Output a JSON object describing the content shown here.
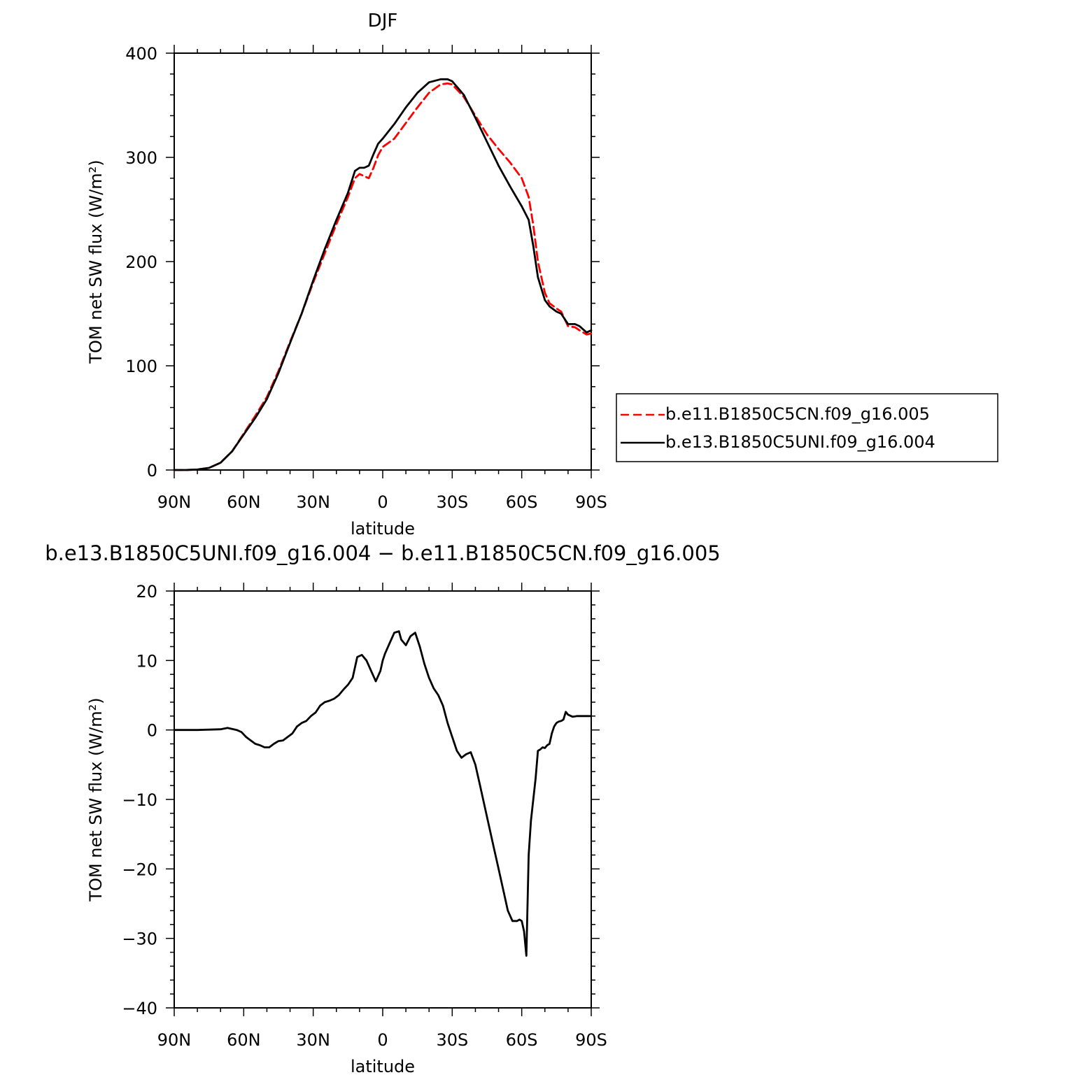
{
  "chart_data": [
    {
      "type": "line",
      "title": "DJF",
      "xlabel": "latitude",
      "ylabel": "TOM net SW flux (W/m²)",
      "xlim": [
        90,
        -90
      ],
      "ylim": [
        0,
        400
      ],
      "x_ticks": [
        90,
        60,
        30,
        0,
        -30,
        -60,
        -90
      ],
      "x_tick_labels": [
        "90N",
        "60N",
        "30N",
        "0",
        "30S",
        "60S",
        "90S"
      ],
      "y_ticks": [
        0,
        100,
        200,
        300,
        400
      ],
      "y_tick_labels": [
        "0",
        "100",
        "200",
        "300",
        "400"
      ],
      "legend_position": "right",
      "x": [
        90,
        85,
        80,
        75,
        70,
        65,
        60,
        55,
        50,
        45,
        40,
        35,
        30,
        25,
        20,
        15,
        12,
        10,
        8,
        6,
        4,
        2,
        0,
        -5,
        -10,
        -15,
        -20,
        -25,
        -28,
        -30,
        -35,
        -40,
        -45,
        -50,
        -55,
        -60,
        -63,
        -65,
        -67,
        -70,
        -72,
        -75,
        -77,
        -80,
        -83,
        -85,
        -88,
        -90
      ],
      "series": [
        {
          "name": "b.e11.B1850C5CN.f09_g16.005",
          "color": "#ff0000",
          "dash": "dashed",
          "values": [
            0,
            0,
            0.5,
            2,
            7,
            18,
            35,
            52,
            70,
            95,
            123,
            150,
            180,
            208,
            236,
            262,
            280,
            284,
            282,
            280,
            290,
            302,
            310,
            318,
            333,
            348,
            362,
            370,
            371,
            370,
            358,
            340,
            322,
            308,
            295,
            280,
            262,
            235,
            200,
            170,
            160,
            155,
            152,
            138,
            137,
            134,
            130,
            131
          ]
        },
        {
          "name": "b.e13.B1850C5UNI.f09_g16.004",
          "color": "#000000",
          "dash": "solid",
          "values": [
            0,
            0,
            0.5,
            2,
            7,
            18,
            34,
            50,
            68,
            93,
            122,
            150,
            182,
            212,
            240,
            266,
            287,
            290,
            290,
            292,
            303,
            313,
            318,
            332,
            348,
            362,
            372,
            375,
            375,
            373,
            360,
            338,
            315,
            292,
            272,
            253,
            240,
            215,
            185,
            163,
            157,
            152,
            150,
            140,
            140,
            138,
            132,
            134
          ]
        }
      ]
    },
    {
      "type": "line",
      "title": "b.e13.B1850C5UNI.f09_g16.004 − b.e11.B1850C5CN.f09_g16.005",
      "xlabel": "latitude",
      "ylabel": "TOM net SW flux (W/m²)",
      "xlim": [
        90,
        -90
      ],
      "ylim": [
        -40,
        20
      ],
      "x_ticks": [
        90,
        60,
        30,
        0,
        -30,
        -60,
        -90
      ],
      "x_tick_labels": [
        "90N",
        "60N",
        "30N",
        "0",
        "30S",
        "60S",
        "90S"
      ],
      "y_ticks": [
        -40,
        -30,
        -20,
        -10,
        0,
        10,
        20
      ],
      "y_tick_labels": [
        "−40",
        "−30",
        "−20",
        "−10",
        "0",
        "10",
        "20"
      ],
      "x": [
        90,
        80,
        70,
        67,
        63,
        61,
        59,
        57,
        55,
        53,
        51,
        49,
        47,
        45,
        43,
        41,
        39,
        37,
        35,
        33,
        31,
        29,
        27,
        25,
        23,
        21,
        19,
        17,
        15,
        13,
        11,
        9,
        7,
        5,
        3,
        1,
        0,
        -1,
        -3,
        -5,
        -7,
        -8,
        -10,
        -12,
        -14,
        -16,
        -18,
        -20,
        -22,
        -24,
        -26,
        -28,
        -30,
        -32,
        -34,
        -36,
        -38,
        -40,
        -42,
        -44,
        -46,
        -48,
        -50,
        -52,
        -54,
        -56,
        -58,
        -59,
        -60,
        -61,
        -62,
        -63,
        -64,
        -65,
        -66,
        -67,
        -68,
        -69,
        -70,
        -71,
        -72,
        -73,
        -74,
        -75,
        -76,
        -77,
        -78,
        -79,
        -80,
        -82,
        -84,
        -86,
        -87,
        -88,
        -90
      ],
      "series": [
        {
          "name": "",
          "color": "#000000",
          "dash": "solid",
          "values": [
            0,
            0,
            0.1,
            0.3,
            0,
            -0.3,
            -1.0,
            -1.5,
            -2.0,
            -2.2,
            -2.5,
            -2.5,
            -2.0,
            -1.6,
            -1.5,
            -1.0,
            -0.5,
            0.5,
            1.0,
            1.3,
            2.0,
            2.5,
            3.5,
            4.0,
            4.2,
            4.5,
            5.0,
            5.8,
            6.5,
            7.5,
            10.5,
            10.8,
            10.0,
            8.5,
            7.0,
            8.5,
            10.0,
            11.0,
            12.5,
            14.0,
            14.2,
            13.0,
            12.2,
            13.5,
            14.0,
            12.0,
            9.5,
            7.5,
            6.0,
            5.0,
            3.5,
            1.0,
            -1.0,
            -3.0,
            -4.0,
            -3.5,
            -3.2,
            -5.0,
            -8.0,
            -11.0,
            -14.0,
            -17.0,
            -20.0,
            -23.0,
            -26.0,
            -27.5,
            -27.5,
            -27.3,
            -27.5,
            -29.0,
            -32.5,
            -18.0,
            -13.0,
            -10.0,
            -7.0,
            -3.0,
            -2.8,
            -2.5,
            -2.6,
            -2.2,
            -2.0,
            -0.5,
            0.5,
            1.0,
            1.2,
            1.3,
            1.5,
            2.6,
            2.2,
            1.9,
            2.0,
            2.0,
            2.0,
            2.0,
            2.0
          ]
        }
      ]
    }
  ]
}
